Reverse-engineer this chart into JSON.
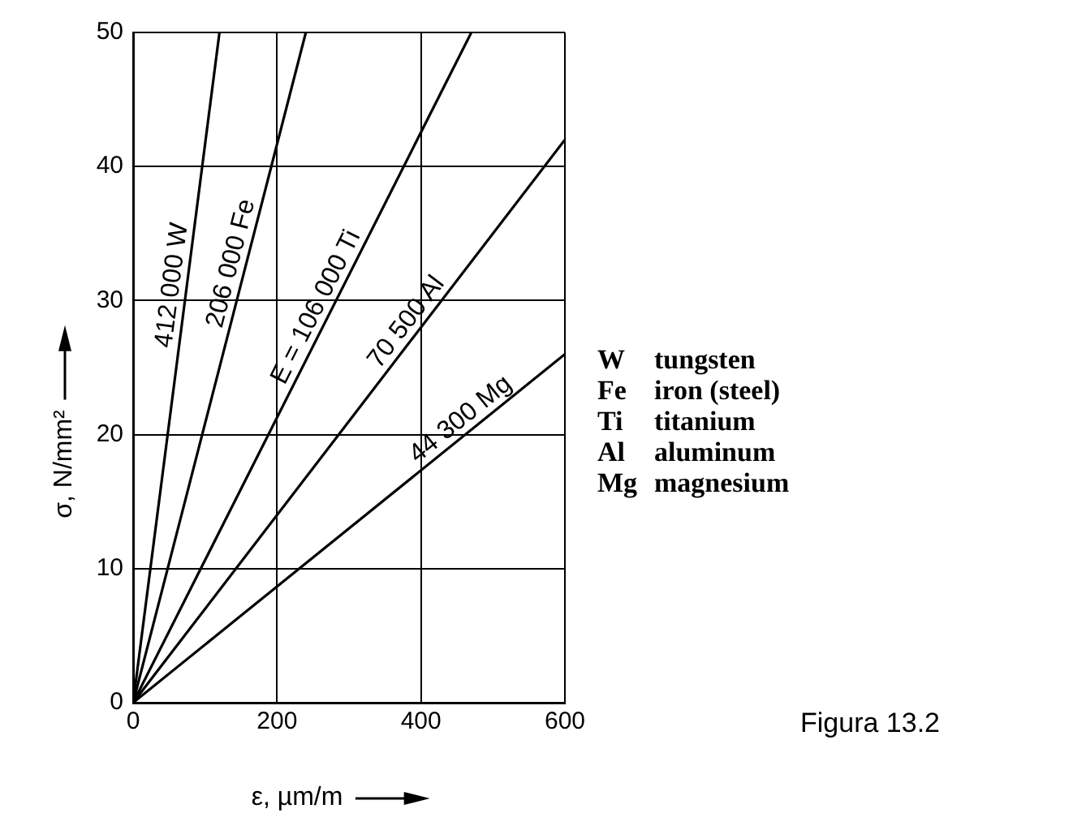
{
  "chart_data": {
    "type": "line",
    "xlabel": "ε, µm/m",
    "ylabel": "σ, N/mm²",
    "series": [
      {
        "name": "412 000 W",
        "color": "#000000",
        "x": [
          0,
          120
        ],
        "values": [
          0,
          50
        ]
      },
      {
        "name": "206 000 Fe",
        "color": "#000000",
        "x": [
          0,
          240
        ],
        "values": [
          0,
          50
        ]
      },
      {
        "name": "E = 106 000 Ti",
        "color": "#000000",
        "x": [
          0,
          470
        ],
        "values": [
          0,
          50
        ]
      },
      {
        "name": "70 500 Al",
        "color": "#000000",
        "x": [
          0,
          600
        ],
        "values": [
          0,
          42
        ]
      },
      {
        "name": "44 300 Mg",
        "color": "#000000",
        "x": [
          0,
          600
        ],
        "values": [
          0,
          26
        ]
      }
    ],
    "xlim": [
      0,
      600
    ],
    "xticks": [
      0,
      200,
      400,
      600
    ],
    "ylim": [
      0,
      50
    ],
    "yticks": [
      0,
      10,
      20,
      30,
      40,
      50
    ],
    "grid": true,
    "legend": false,
    "marker": "none",
    "line_style": "solid",
    "annotations": [
      "W tungsten",
      "Fe iron (steel)",
      "Ti titanium",
      "Al aluminum",
      "Mg magnesium",
      "Figura 13.2"
    ]
  }
}
